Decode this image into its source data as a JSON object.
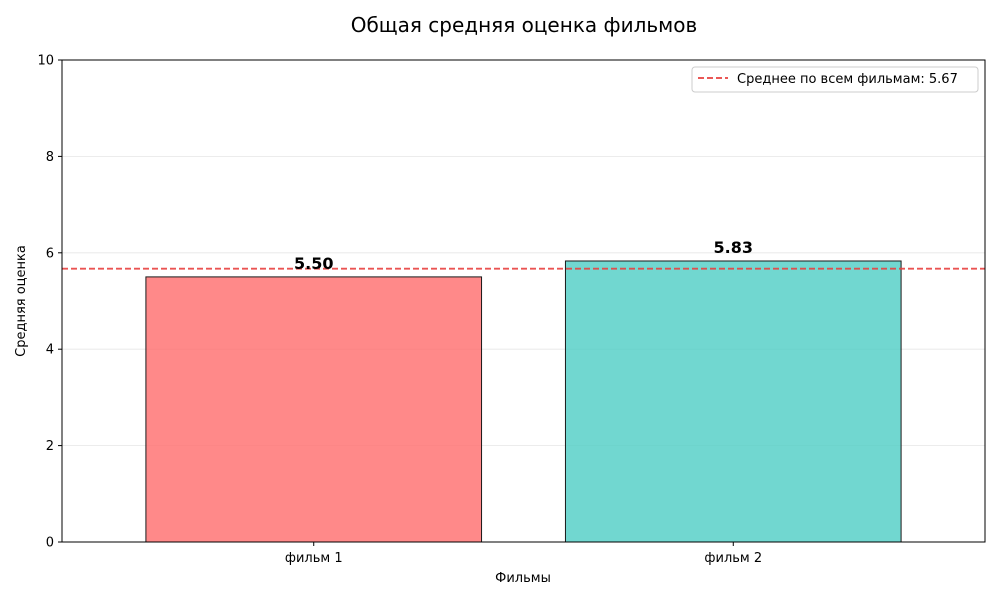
{
  "chart_data": {
    "type": "bar",
    "title": "Общая средняя оценка фильмов",
    "xlabel": "Фильмы",
    "ylabel": "Средняя оценка",
    "categories": [
      "фильм 1",
      "фильм 2"
    ],
    "values": [
      5.5,
      5.83
    ],
    "value_labels": [
      "5.50",
      "5.83"
    ],
    "bar_colors": [
      "#ff6b6b",
      "#4ecdc4"
    ],
    "ylim": [
      0,
      10
    ],
    "yticks": [
      0,
      2,
      4,
      6,
      8,
      10
    ],
    "grid": true,
    "mean_line": {
      "value": 5.67,
      "label": "Среднее по всем фильмам: 5.67",
      "color": "#e8403f",
      "style": "dashed"
    },
    "legend_position": "top-right"
  }
}
